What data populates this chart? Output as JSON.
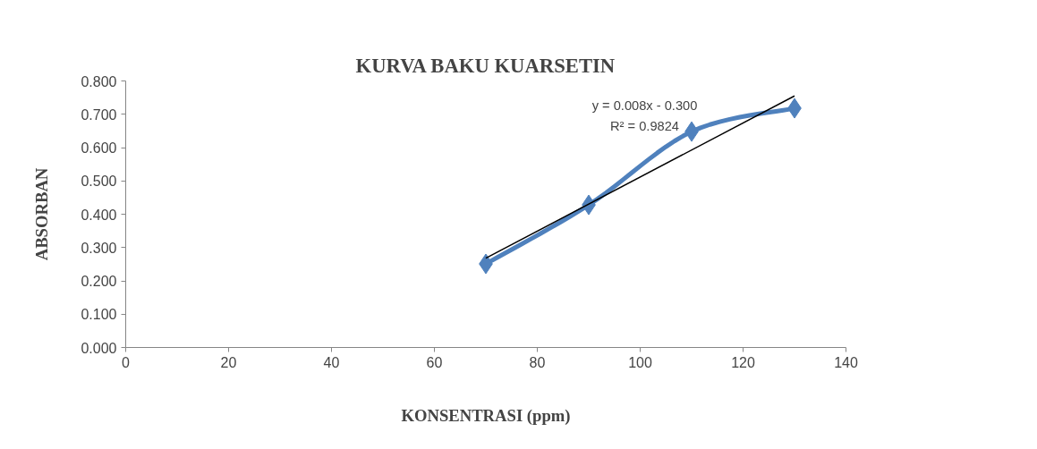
{
  "chart_data": {
    "type": "line",
    "title": "KURVA BAKU KUARSETIN",
    "xlabel": "KONSENTRASI (ppm)",
    "ylabel": "ABSORBAN",
    "xlim": [
      0,
      140
    ],
    "xticks": [
      0,
      20,
      40,
      60,
      80,
      100,
      120,
      140
    ],
    "ylim": [
      0,
      0.8
    ],
    "yticks": [
      {
        "value": 0,
        "label": "0.000"
      },
      {
        "value": 0.1,
        "label": "0.100"
      },
      {
        "value": 0.2,
        "label": "0.200"
      },
      {
        "value": 0.3,
        "label": "0.300"
      },
      {
        "value": 0.4,
        "label": "0.400"
      },
      {
        "value": 0.5,
        "label": "0.500"
      },
      {
        "value": 0.6,
        "label": "0.600"
      },
      {
        "value": 0.7,
        "label": "0.700"
      },
      {
        "value": 0.8,
        "label": "0.800"
      }
    ],
    "grid": false,
    "series": [
      {
        "color": "#4f81bd",
        "x": [
          70,
          90,
          110,
          130
        ],
        "values": [
          0.251,
          0.428,
          0.648,
          0.718
        ],
        "marker": "diamond"
      },
      {
        "color": "#000000",
        "x": [
          70,
          130
        ],
        "values": [
          0.268,
          0.755
        ],
        "marker": "none"
      }
    ],
    "annotations": [
      "y = 0.008x - 0.300",
      "R² = 0.9824"
    ]
  }
}
